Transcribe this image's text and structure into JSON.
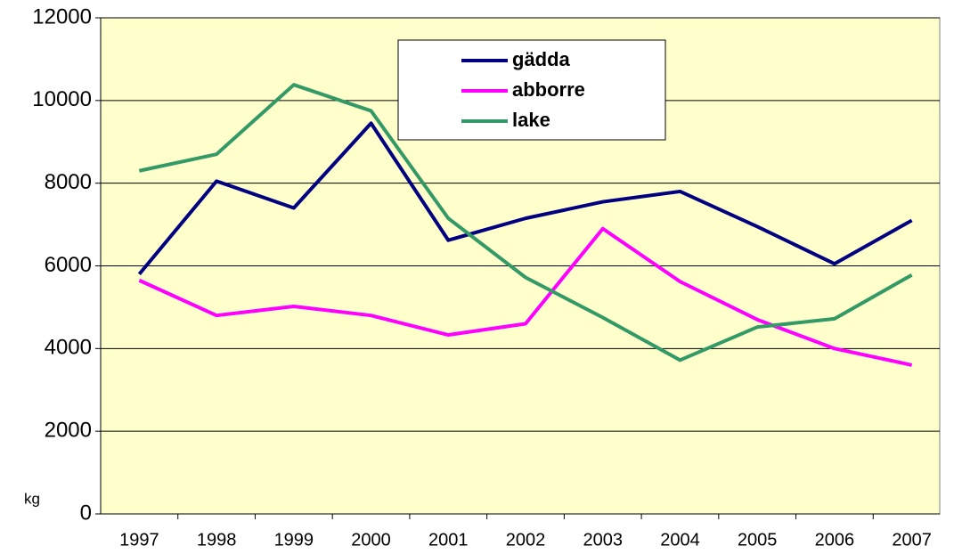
{
  "chart_data": {
    "type": "line",
    "y_label": "kg",
    "categories": [
      "1997",
      "1998",
      "1999",
      "2000",
      "2001",
      "2002",
      "2003",
      "2004",
      "2005",
      "2006",
      "2007"
    ],
    "series": [
      {
        "name": "gädda",
        "color": "#000080",
        "values": [
          5800,
          8050,
          7400,
          9450,
          6620,
          7150,
          7550,
          7800,
          6950,
          6050,
          7100
        ]
      },
      {
        "name": "abborre",
        "color": "#ff00ff",
        "values": [
          5650,
          4800,
          5020,
          4800,
          4330,
          4600,
          6900,
          5620,
          4700,
          4000,
          3600
        ]
      },
      {
        "name": "lake",
        "color": "#339966",
        "values": [
          8300,
          8700,
          10380,
          9750,
          7150,
          5720,
          4750,
          3720,
          4520,
          4720,
          5780
        ]
      }
    ],
    "ylim": [
      0,
      12000
    ],
    "yticks": [
      0,
      2000,
      4000,
      6000,
      8000,
      10000,
      12000
    ],
    "grid": true,
    "background": "#ffffcc"
  }
}
